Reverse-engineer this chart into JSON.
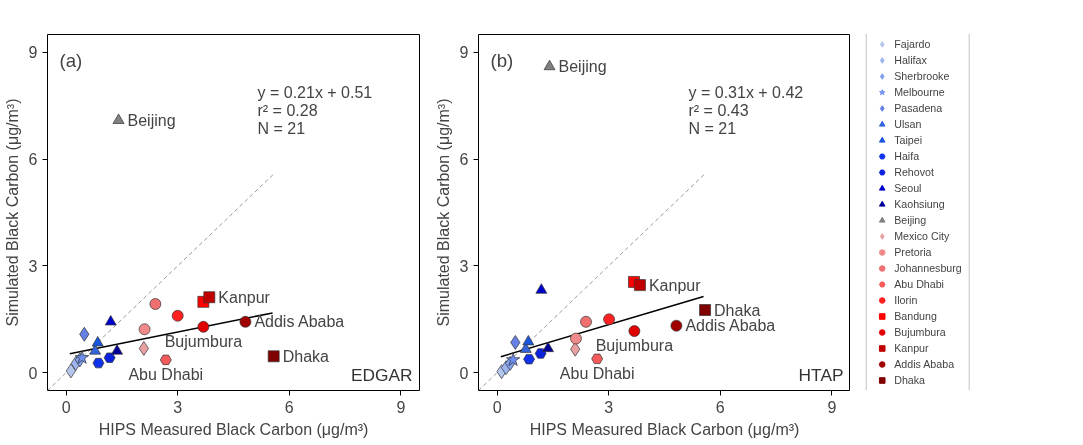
{
  "chart_data": [
    {
      "type": "scatter",
      "xlabel": "HIPS Measured Black Carbon (μg/m³)",
      "ylabel": "Simulated Black Carbon (μg/m³)",
      "xlim": [
        -0.5,
        9.5
      ],
      "ylim": [
        -0.5,
        9.5
      ],
      "xticks": [
        0,
        3,
        6,
        9
      ],
      "yticks": [
        0,
        3,
        6,
        9
      ],
      "legend": false,
      "annotations": [
        "(a)",
        "y = 0.21x + 0.51",
        "r² = 0.28",
        "N = 21",
        "EDGAR",
        {
          "text": "Beijing",
          "x": 1.41,
          "y": 7.09
        },
        {
          "text": "Kanpur",
          "x": 3.85,
          "y": 2.12
        },
        {
          "text": "Addis Ababa",
          "x": 4.82,
          "y": 1.43
        },
        {
          "text": "Bujumbura",
          "x": 3.69,
          "y": 1.29
        },
        {
          "text": "Dhaka",
          "x": 5.58,
          "y": 0.46
        },
        {
          "text": "Abu Dhabi",
          "x": 2.68,
          "y": 0.36
        }
      ],
      "series": [
        {
          "type": "line",
          "color": "#999999",
          "line_style": "dashed",
          "x": [
            -0.5,
            5.6
          ],
          "values": [
            -0.5,
            5.6
          ]
        },
        {
          "type": "line",
          "color": "#000000",
          "line_style": "solid",
          "x": [
            0.1,
            5.55
          ],
          "values": [
            0.53,
            1.68
          ]
        },
        {
          "color": "#b4c6ee",
          "marker": "diamond",
          "x": [
            0.13
          ],
          "values": [
            0.05
          ]
        },
        {
          "color": "#9db6f0",
          "marker": "diamond",
          "x": [
            0.26
          ],
          "values": [
            0.26
          ]
        },
        {
          "color": "#84a2f0",
          "marker": "diamond",
          "x": [
            0.37
          ],
          "values": [
            0.36
          ]
        },
        {
          "color": "#6f8ff0",
          "marker": "star",
          "x": [
            0.43
          ],
          "values": [
            0.42
          ]
        },
        {
          "color": "#6680e6",
          "marker": "diamond",
          "x": [
            0.49
          ],
          "values": [
            1.08
          ]
        },
        {
          "color": "#3366dd",
          "marker": "triangle",
          "x": [
            0.78
          ],
          "values": [
            0.61
          ]
        },
        {
          "color": "#1a55dd",
          "marker": "triangle",
          "x": [
            0.85
          ],
          "values": [
            0.84
          ]
        },
        {
          "color": "#1133ee",
          "x": [
            0.87
          ],
          "values": [
            0.27
          ]
        },
        {
          "color": "#0a22dd",
          "x": [
            1.17
          ],
          "values": [
            0.42
          ]
        },
        {
          "color": "#0000cc",
          "marker": "triangle",
          "x": [
            1.2
          ],
          "values": [
            1.43
          ]
        },
        {
          "color": "#000099",
          "marker": "triangle",
          "x": [
            1.37
          ],
          "values": [
            0.61
          ]
        },
        {
          "color": "#808080",
          "marker": "triangle",
          "x": [
            1.41
          ],
          "values": [
            7.09
          ]
        },
        {
          "color": "#e8a0a0",
          "marker": "diamond",
          "x": [
            2.09
          ],
          "values": [
            0.68
          ]
        },
        {
          "color": "#f08a8a",
          "marker": "circle",
          "x": [
            2.11
          ],
          "values": [
            1.22
          ]
        },
        {
          "color": "#f07070",
          "marker": "circle",
          "x": [
            2.4
          ],
          "values": [
            1.93
          ]
        },
        {
          "color": "#f55a5a",
          "x": [
            2.68
          ],
          "values": [
            0.36
          ]
        },
        {
          "color": "#ff2020",
          "marker": "circle",
          "x": [
            3.0
          ],
          "values": [
            1.6
          ]
        },
        {
          "color": "#ff0000",
          "marker": "square",
          "x": [
            3.69
          ],
          "values": [
            1.99
          ]
        },
        {
          "color": "#e00000",
          "marker": "circle",
          "x": [
            3.69
          ],
          "values": [
            1.29
          ]
        },
        {
          "color": "#c00000",
          "marker": "square",
          "x": [
            3.85
          ],
          "values": [
            2.12
          ]
        },
        {
          "color": "#a00000",
          "marker": "circle",
          "x": [
            4.82
          ],
          "values": [
            1.43
          ]
        },
        {
          "color": "#800000",
          "marker": "square",
          "x": [
            5.58
          ],
          "values": [
            0.46
          ]
        }
      ]
    },
    {
      "type": "scatter",
      "xlabel": "HIPS Measured Black Carbon (μg/m³)",
      "ylabel": "Simulated Black Carbon (μg/m³)",
      "xlim": [
        -0.5,
        9.5
      ],
      "ylim": [
        -0.5,
        9.5
      ],
      "xticks": [
        0,
        3,
        6,
        9
      ],
      "yticks": [
        0,
        3,
        6,
        9
      ],
      "legend": "right",
      "annotations": [
        "(b)",
        "y = 0.31x + 0.42",
        "r² = 0.43",
        "N = 21",
        "HTAP",
        {
          "text": "Beijing",
          "x": 1.41,
          "y": 8.6
        },
        {
          "text": "Kanpur",
          "x": 3.84,
          "y": 2.46
        },
        {
          "text": "Dhaka",
          "x": 5.59,
          "y": 1.76
        },
        {
          "text": "Addis Ababa",
          "x": 4.82,
          "y": 1.32
        },
        {
          "text": "Bujumbura",
          "x": 3.69,
          "y": 1.17
        },
        {
          "text": "Abu Dhabi",
          "x": 2.69,
          "y": 0.39
        }
      ],
      "series": [
        {
          "type": "line",
          "color": "#999999",
          "line_style": "dashed",
          "x": [
            -0.5,
            5.6
          ],
          "values": [
            -0.5,
            5.6
          ]
        },
        {
          "type": "line",
          "color": "#000000",
          "line_style": "solid",
          "x": [
            0.1,
            5.55
          ],
          "values": [
            0.45,
            2.14
          ]
        },
        {
          "name": "Fajardo",
          "color": "#b4c6ee",
          "marker": "diamond",
          "x": [
            0.12
          ],
          "values": [
            0.03
          ]
        },
        {
          "name": "Halifax",
          "color": "#9db6f0",
          "marker": "diamond",
          "x": [
            0.24
          ],
          "values": [
            0.14
          ]
        },
        {
          "name": "Sherbrooke",
          "color": "#84a2f0",
          "marker": "diamond",
          "x": [
            0.35
          ],
          "values": [
            0.26
          ]
        },
        {
          "name": "Melbourne",
          "color": "#6f8ff0",
          "marker": "star",
          "x": [
            0.43
          ],
          "values": [
            0.36
          ]
        },
        {
          "name": "Pasadena",
          "color": "#6680e6",
          "marker": "diamond",
          "x": [
            0.49
          ],
          "values": [
            0.85
          ]
        },
        {
          "name": "Ulsan",
          "color": "#3366dd",
          "marker": "triangle",
          "x": [
            0.77
          ],
          "values": [
            0.66
          ]
        },
        {
          "name": "Taipei",
          "color": "#1a55dd",
          "marker": "triangle",
          "x": [
            0.84
          ],
          "values": [
            0.87
          ]
        },
        {
          "name": "Haifa",
          "color": "#1133ee",
          "x": [
            0.86
          ],
          "values": [
            0.38
          ]
        },
        {
          "name": "Rehovot",
          "color": "#0a22dd",
          "x": [
            1.17
          ],
          "values": [
            0.54
          ]
        },
        {
          "name": "Seoul",
          "color": "#0000cc",
          "marker": "triangle",
          "x": [
            1.19
          ],
          "values": [
            2.32
          ]
        },
        {
          "name": "Kaohsiung",
          "color": "#000099",
          "marker": "triangle",
          "x": [
            1.37
          ],
          "values": [
            0.68
          ]
        },
        {
          "name": "Beijing",
          "color": "#808080",
          "marker": "triangle",
          "x": [
            1.41
          ],
          "values": [
            8.6
          ]
        },
        {
          "name": "Mexico City",
          "color": "#e8a0a0",
          "marker": "diamond",
          "x": [
            2.1
          ],
          "values": [
            0.66
          ]
        },
        {
          "name": "Pretoria",
          "color": "#f08a8a",
          "marker": "circle",
          "x": [
            2.12
          ],
          "values": [
            0.96
          ]
        },
        {
          "name": "Johannesburg",
          "color": "#f07070",
          "marker": "circle",
          "x": [
            2.39
          ],
          "values": [
            1.43
          ]
        },
        {
          "name": "Abu Dhabi",
          "color": "#f55a5a",
          "x": [
            2.69
          ],
          "values": [
            0.39
          ]
        },
        {
          "name": "Ilorin",
          "color": "#ff2020",
          "marker": "circle",
          "x": [
            3.01
          ],
          "values": [
            1.5
          ]
        },
        {
          "name": "Bandung",
          "color": "#ff0000",
          "marker": "square",
          "x": [
            3.68
          ],
          "values": [
            2.55
          ]
        },
        {
          "name": "Bujumbura",
          "color": "#e00000",
          "marker": "circle",
          "x": [
            3.69
          ],
          "values": [
            1.17
          ]
        },
        {
          "name": "Kanpur",
          "color": "#c00000",
          "marker": "square",
          "x": [
            3.84
          ],
          "values": [
            2.46
          ]
        },
        {
          "name": "Addis Ababa",
          "color": "#a00000",
          "marker": "circle",
          "x": [
            4.82
          ],
          "values": [
            1.32
          ]
        },
        {
          "name": "Dhaka",
          "color": "#800000",
          "marker": "square",
          "x": [
            5.59
          ],
          "values": [
            1.76
          ]
        }
      ]
    }
  ]
}
